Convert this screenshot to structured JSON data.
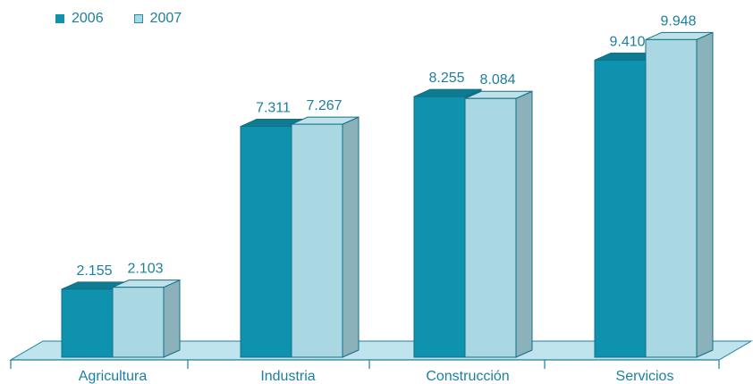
{
  "chart_data": {
    "type": "bar",
    "categories": [
      "Agricultura",
      "Industria",
      "Construcción",
      "Servicios"
    ],
    "series": [
      {
        "name": "2006",
        "values": [
          2.155,
          7.311,
          8.255,
          9.41
        ],
        "labels": [
          "2.155",
          "7.311",
          "8.255",
          "9.410"
        ],
        "color": "#0f92ad"
      },
      {
        "name": "2007",
        "values": [
          2.103,
          7.267,
          8.084,
          9.948
        ],
        "labels": [
          "2.103",
          "7.267",
          "8.084",
          "9.948"
        ],
        "color": "#a9d8e3"
      }
    ],
    "title": "",
    "xlabel": "",
    "ylabel": "",
    "ylim": [
      0,
      10
    ],
    "grid": false,
    "legend_position": "top-left"
  },
  "colors": {
    "label_text": "#1d7fa0",
    "floor": "#bfe4ed",
    "axis": "#1d7fa0"
  }
}
